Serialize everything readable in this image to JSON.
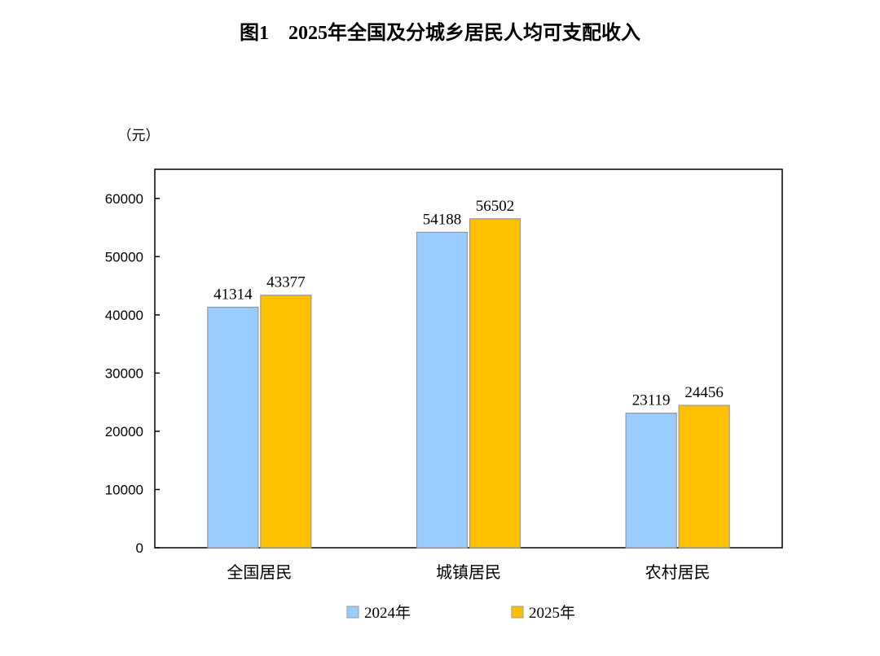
{
  "chart_data": {
    "type": "bar",
    "title": "图1　2025年全国及分城乡居民人均可支配收入",
    "ylabel": "（元）",
    "xlabel": "",
    "categories": [
      "全国居民",
      "城镇居民",
      "农村居民"
    ],
    "series": [
      {
        "name": "2024年",
        "color": "#99CCFF",
        "values": [
          41314,
          54188,
          23119
        ]
      },
      {
        "name": "2025年",
        "color": "#FFC000",
        "values": [
          43377,
          56502,
          24456
        ]
      }
    ],
    "ylim": [
      0,
      65000
    ],
    "yticks": [
      0,
      10000,
      20000,
      30000,
      40000,
      50000,
      60000
    ],
    "grid": false,
    "legend": "bottom",
    "data_labels": true
  }
}
